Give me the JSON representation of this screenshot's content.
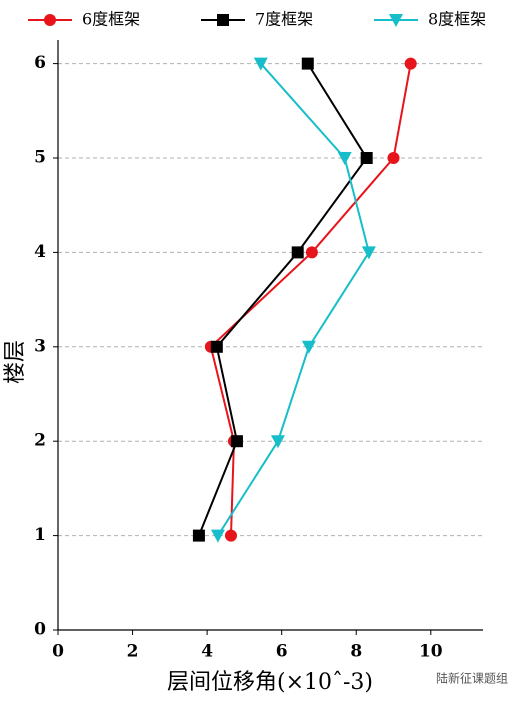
{
  "chart_data": {
    "type": "line",
    "orientation": "horizontal",
    "xlabel": "层间位移角(×10ˆ-3)",
    "ylabel": "楼层",
    "y": [
      1,
      2,
      3,
      4,
      5,
      6
    ],
    "series": [
      {
        "name": "6度框架",
        "color": "#e8141c",
        "marker": "circle",
        "values": [
          4.64,
          4.72,
          4.1,
          6.81,
          9.0,
          9.46
        ]
      },
      {
        "name": "7度框架",
        "color": "#000000",
        "marker": "square",
        "values": [
          3.78,
          4.8,
          4.26,
          6.43,
          8.28,
          6.7
        ]
      },
      {
        "name": "8度框架",
        "color": "#17bec9",
        "marker": "triangle-down",
        "values": [
          4.29,
          5.9,
          6.73,
          8.34,
          7.69,
          5.44
        ]
      }
    ],
    "xlim": [
      0,
      11.4
    ],
    "ylim": [
      0,
      6.25
    ],
    "xticks": [
      0,
      2,
      4,
      6,
      8,
      10
    ],
    "yticks": [
      0,
      1,
      2,
      3,
      4,
      5,
      6
    ],
    "grid": true,
    "legend": "top",
    "watermark": "陆新征课题组"
  }
}
